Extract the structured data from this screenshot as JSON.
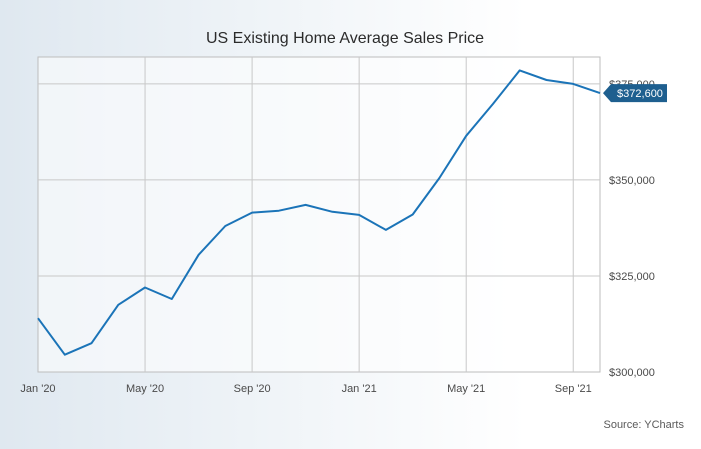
{
  "chart_data": {
    "type": "line",
    "title": "US Existing Home Average Sales Price",
    "source": "Source: YCharts",
    "xlabel": "",
    "ylabel": "",
    "x": [
      "Jan '20",
      "Feb '20",
      "Mar '20",
      "Apr '20",
      "May '20",
      "Jun '20",
      "Jul '20",
      "Aug '20",
      "Sep '20",
      "Oct '20",
      "Nov '20",
      "Dec '20",
      "Jan '21",
      "Feb '21",
      "Mar '21",
      "Apr '21",
      "May '21",
      "Jun '21",
      "Jul '21",
      "Aug '21",
      "Sep '21",
      "Oct '21"
    ],
    "x_tick_labels": [
      "Jan '20",
      "May '20",
      "Sep '20",
      "Jan '21",
      "May '21",
      "Sep '21"
    ],
    "x_tick_indices": [
      0,
      4,
      8,
      12,
      16,
      20
    ],
    "series": [
      {
        "values": [
          314000,
          304500,
          307500,
          317500,
          322000,
          319000,
          330500,
          338000,
          341500,
          342000,
          343500,
          341700,
          340900,
          337000,
          341000,
          350500,
          361500,
          369800,
          378500,
          376000,
          375000,
          372600
        ]
      }
    ],
    "y_ticks": [
      300000,
      325000,
      350000,
      375000
    ],
    "y_tick_labels": [
      "$300,000",
      "$325,000",
      "$350,000",
      "$375,000"
    ],
    "ylim": [
      300000,
      382000
    ],
    "last_value_label": "$372,600",
    "grid": true,
    "colors": {
      "line": "#1b74b8",
      "grid": "#c8c8c8",
      "axis": "#4a4a4a",
      "badge": "#1e5f8f",
      "badge_text": "#ffffff"
    }
  }
}
